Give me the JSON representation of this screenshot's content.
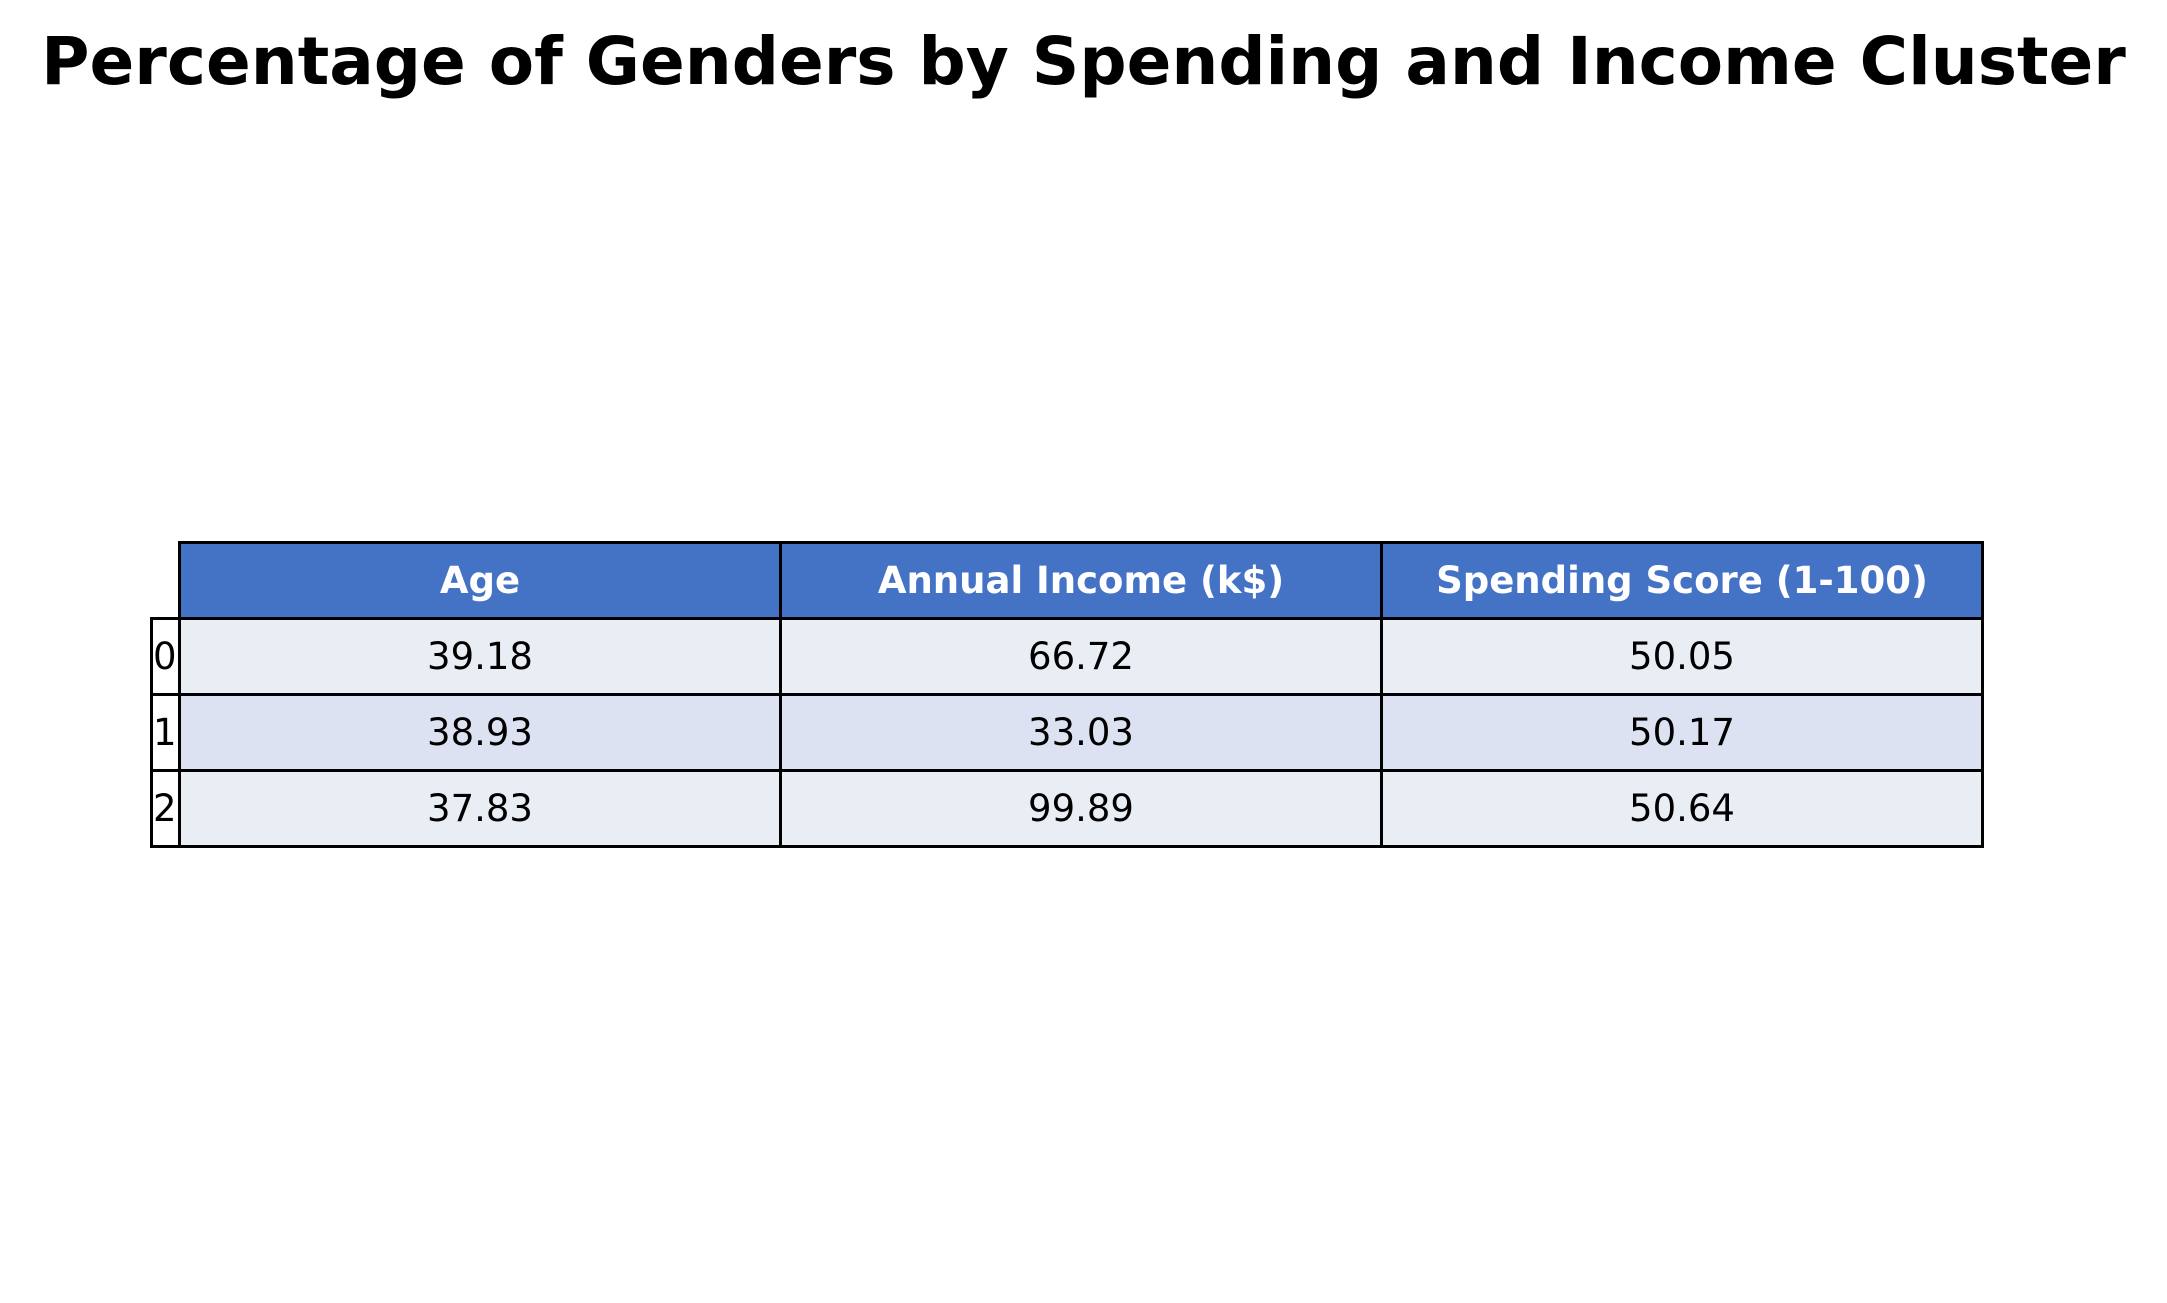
{
  "chart_data": {
    "type": "table",
    "title": "Percentage of Genders by Spending and Income Cluster",
    "columns": [
      "Age",
      "Annual Income (k$)",
      "Spending Score (1-100)"
    ],
    "rows": [
      {
        "index": "0",
        "values": [
          "39.18",
          "66.72",
          "50.05"
        ]
      },
      {
        "index": "1",
        "values": [
          "38.93",
          "33.03",
          "50.17"
        ]
      },
      {
        "index": "2",
        "values": [
          "37.83",
          "99.89",
          "50.64"
        ]
      }
    ],
    "colors": {
      "header_background": "#4472c4",
      "header_text": "#ffffff",
      "row_even": "#e9edf4",
      "row_odd": "#dce2f2",
      "border": "#000000"
    }
  }
}
